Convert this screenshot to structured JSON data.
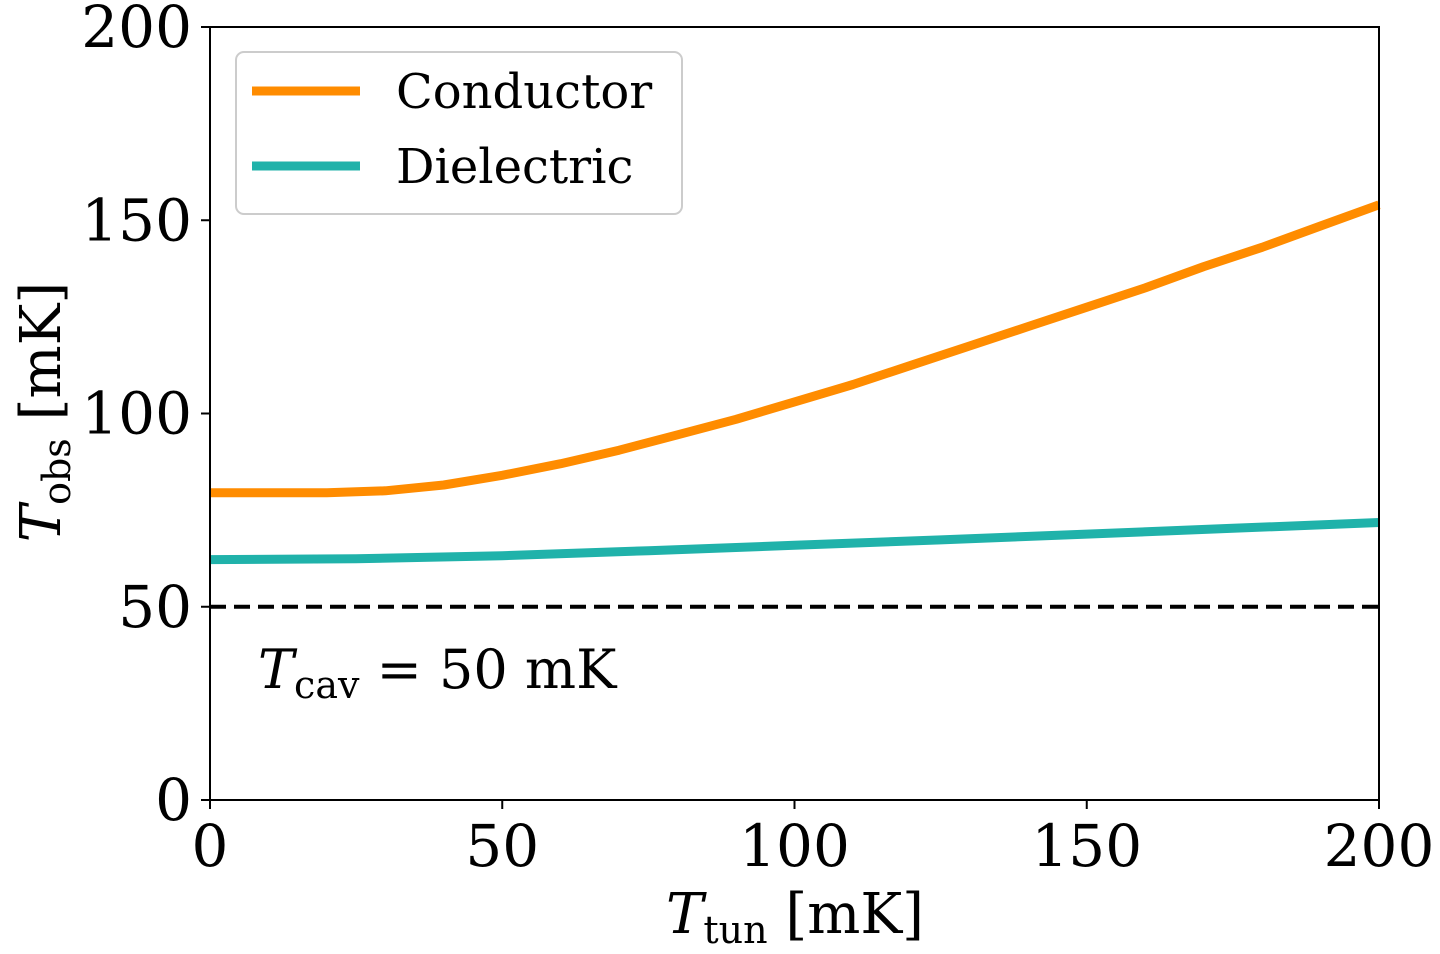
{
  "chart_data": {
    "type": "line",
    "title": "",
    "xlabel": "T_tun [mK]",
    "ylabel": "T_obs [mK]",
    "xlim": [
      0,
      200
    ],
    "ylim": [
      0,
      200
    ],
    "xticks": [
      0,
      50,
      100,
      150,
      200
    ],
    "yticks": [
      0,
      50,
      100,
      150,
      200
    ],
    "xtick_labels": [
      "0",
      "50",
      "100",
      "150",
      "200"
    ],
    "ytick_labels": [
      "0",
      "50",
      "100",
      "150",
      "200"
    ],
    "grid": false,
    "legend_position": "top-left",
    "series": [
      {
        "name": "Conductor",
        "color": "#ff8c00",
        "x": [
          0,
          10,
          20,
          30,
          40,
          50,
          60,
          70,
          80,
          90,
          100,
          110,
          120,
          130,
          140,
          150,
          160,
          170,
          180,
          190,
          200
        ],
        "y": [
          79.5,
          79.5,
          79.5,
          80,
          81.5,
          84,
          87,
          90.5,
          94.5,
          98.5,
          103,
          107.5,
          112.5,
          117.5,
          122.5,
          127.5,
          132.5,
          138,
          143,
          148.5,
          154
        ]
      },
      {
        "name": "Dielectric",
        "color": "#20b2aa",
        "x": [
          0,
          25,
          50,
          75,
          100,
          125,
          150,
          175,
          200
        ],
        "y": [
          62.2,
          62.4,
          63.2,
          64.5,
          65.9,
          67.3,
          68.8,
          70.3,
          71.8
        ]
      }
    ],
    "reference_line": {
      "y": 50,
      "style": "dashed",
      "color": "#000000"
    },
    "annotation": {
      "symbol": "T",
      "subscript": "cav",
      "text": " = 50 mK"
    }
  },
  "axis_labels": {
    "x_symbol": "T",
    "x_subscript": "tun",
    "x_unit": " [mK]",
    "y_symbol": "T",
    "y_subscript": "obs",
    "y_unit": " [mK]"
  }
}
